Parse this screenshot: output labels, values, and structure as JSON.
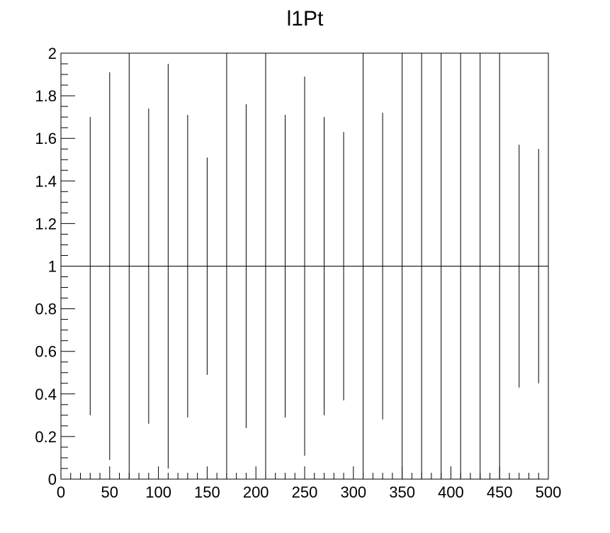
{
  "chart_data": {
    "type": "scatter",
    "title": "l1Pt",
    "xlabel": "",
    "ylabel": "",
    "xlim": [
      0,
      500
    ],
    "ylim": [
      0,
      2
    ],
    "reference_line_y": 1,
    "grid": false,
    "legend": "none",
    "x_ticks": [
      "0",
      "50",
      "100",
      "150",
      "200",
      "250",
      "300",
      "350",
      "400",
      "450",
      "500"
    ],
    "y_ticks": [
      "0",
      "0.2",
      "0.4",
      "0.6",
      "0.8",
      "1",
      "1.2",
      "1.4",
      "1.6",
      "1.8",
      "2"
    ],
    "points": [
      {
        "x": 30,
        "y": 1,
        "ylow": 0.3,
        "yhigh": 1.7
      },
      {
        "x": 50,
        "y": 1,
        "ylow": 0.09,
        "yhigh": 1.91
      },
      {
        "x": 70,
        "y": 1,
        "ylow": 0.0,
        "yhigh": 2.0
      },
      {
        "x": 90,
        "y": 1,
        "ylow": 0.26,
        "yhigh": 1.74
      },
      {
        "x": 110,
        "y": 1,
        "ylow": 0.05,
        "yhigh": 1.95
      },
      {
        "x": 130,
        "y": 1,
        "ylow": 0.29,
        "yhigh": 1.71
      },
      {
        "x": 150,
        "y": 1,
        "ylow": 0.49,
        "yhigh": 1.51
      },
      {
        "x": 170,
        "y": 1,
        "ylow": 0.0,
        "yhigh": 2.0
      },
      {
        "x": 190,
        "y": 1,
        "ylow": 0.24,
        "yhigh": 1.76
      },
      {
        "x": 210,
        "y": 1,
        "ylow": 0.0,
        "yhigh": 2.0
      },
      {
        "x": 230,
        "y": 1,
        "ylow": 0.29,
        "yhigh": 1.71
      },
      {
        "x": 250,
        "y": 1,
        "ylow": 0.11,
        "yhigh": 1.89
      },
      {
        "x": 270,
        "y": 1,
        "ylow": 0.3,
        "yhigh": 1.7
      },
      {
        "x": 290,
        "y": 1,
        "ylow": 0.37,
        "yhigh": 1.63
      },
      {
        "x": 310,
        "y": 1,
        "ylow": 0.0,
        "yhigh": 2.0
      },
      {
        "x": 330,
        "y": 1,
        "ylow": 0.28,
        "yhigh": 1.72
      },
      {
        "x": 350,
        "y": 1,
        "ylow": 0.0,
        "yhigh": 2.0
      },
      {
        "x": 370,
        "y": 1,
        "ylow": 0.0,
        "yhigh": 2.0
      },
      {
        "x": 390,
        "y": 1,
        "ylow": 0.0,
        "yhigh": 2.0
      },
      {
        "x": 410,
        "y": 1,
        "ylow": 0.0,
        "yhigh": 2.0
      },
      {
        "x": 430,
        "y": 1,
        "ylow": 0.0,
        "yhigh": 2.0
      },
      {
        "x": 450,
        "y": 1,
        "ylow": 0.0,
        "yhigh": 2.0
      },
      {
        "x": 470,
        "y": 1,
        "ylow": 0.43,
        "yhigh": 1.57
      },
      {
        "x": 490,
        "y": 1,
        "ylow": 0.45,
        "yhigh": 1.55
      }
    ]
  }
}
